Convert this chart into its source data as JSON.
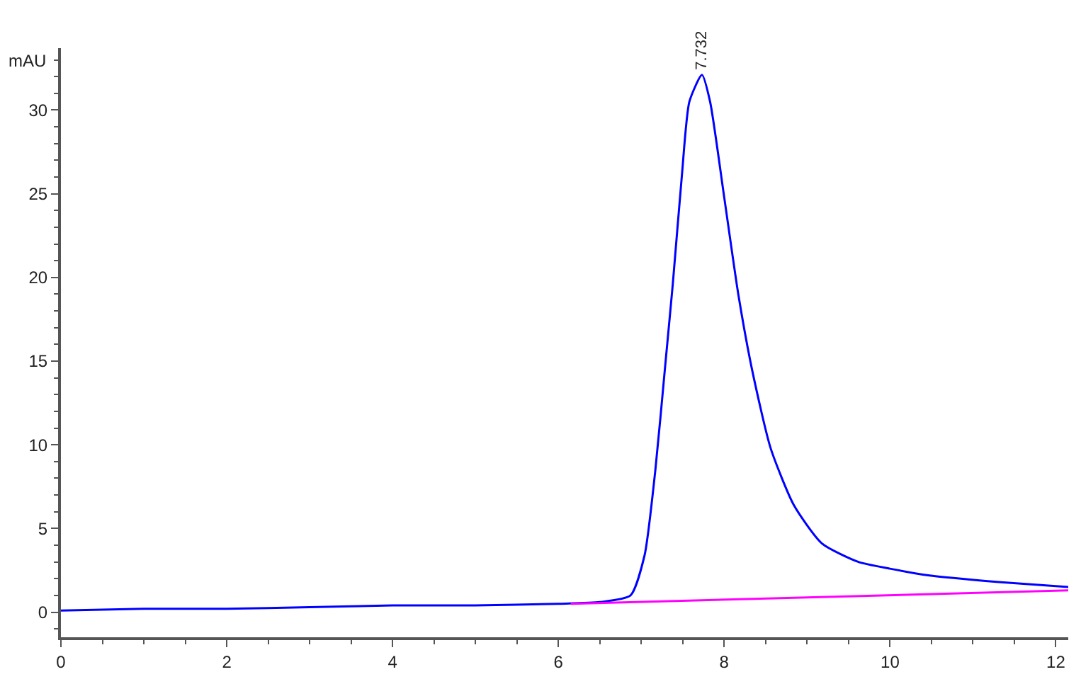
{
  "chart_data": {
    "type": "line",
    "ylabel": "mAU",
    "xlim": [
      0,
      12.15
    ],
    "ylim": [
      -1.5,
      33.7
    ],
    "xticks": [
      0,
      2,
      4,
      6,
      8,
      10,
      12
    ],
    "yticks": [
      0,
      5,
      10,
      15,
      20,
      25,
      30
    ],
    "marker": "none",
    "line_style": "solid",
    "series": [
      {
        "color": "#0000ff",
        "x": [
          0,
          1,
          2,
          3,
          4,
          5,
          6,
          6.5,
          6.87,
          7.04,
          7.17,
          7.29,
          7.38,
          7.49,
          7.58,
          7.732,
          7.83,
          8.0,
          8.17,
          8.34,
          8.56,
          8.84,
          9.18,
          9.62,
          10.0,
          10.46,
          11.31,
          12.15
        ],
        "values": [
          0.1,
          0.2,
          0.2,
          0.3,
          0.4,
          0.4,
          0.5,
          0.6,
          1.0,
          3.4,
          8.5,
          14.8,
          19.6,
          26.1,
          30.5,
          32.1,
          30.5,
          24.8,
          19.0,
          14.4,
          9.8,
          6.4,
          4.1,
          3.0,
          2.6,
          2.2,
          1.8,
          1.5
        ]
      },
      {
        "color": "#ff00ff",
        "x": [
          6.15,
          12.15
        ],
        "values": [
          0.5,
          1.3
        ]
      }
    ],
    "annotations": [
      {
        "text": "7.732",
        "x": 7.732,
        "y": 32.1
      }
    ]
  }
}
